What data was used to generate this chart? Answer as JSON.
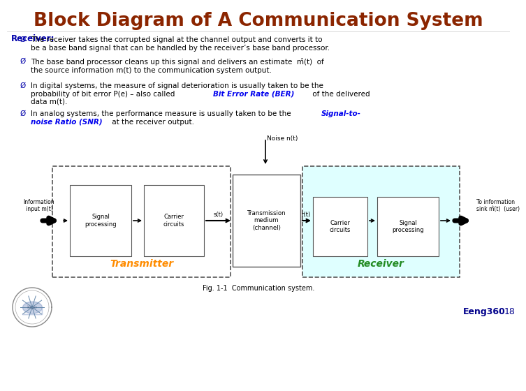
{
  "title": "Block Diagram of A Communication System",
  "title_color": "#8B2500",
  "title_fontsize": 19,
  "bg_color": "#FFFFFF",
  "receiver_label": "Receiver:",
  "bullet_color": "#0000AA",
  "black": "#000000",
  "blue_highlight": "#0000EE",
  "bullets_fs": 7.5,
  "diagram": {
    "transmitter_label": "Transmitter",
    "receiver_label": "Receiver",
    "transmitter_color": "#FF8C00",
    "receiver_color": "#228B22",
    "receiver_bg": "#E0FFFF",
    "noise_label": "Noise n(t)",
    "channel_label": "Transmission\nmedium\n(channel)",
    "info_input": "Information\ninput m(t)",
    "info_output": "To information\nsink m̂(t)  (user)",
    "s_label": "s(t)",
    "r_label": "r(t)",
    "caption": "Fig. 1-1  Communication system.",
    "eeng_label": "Eeng360",
    "eeng_num": "18",
    "eeng_color": "#00008B"
  }
}
